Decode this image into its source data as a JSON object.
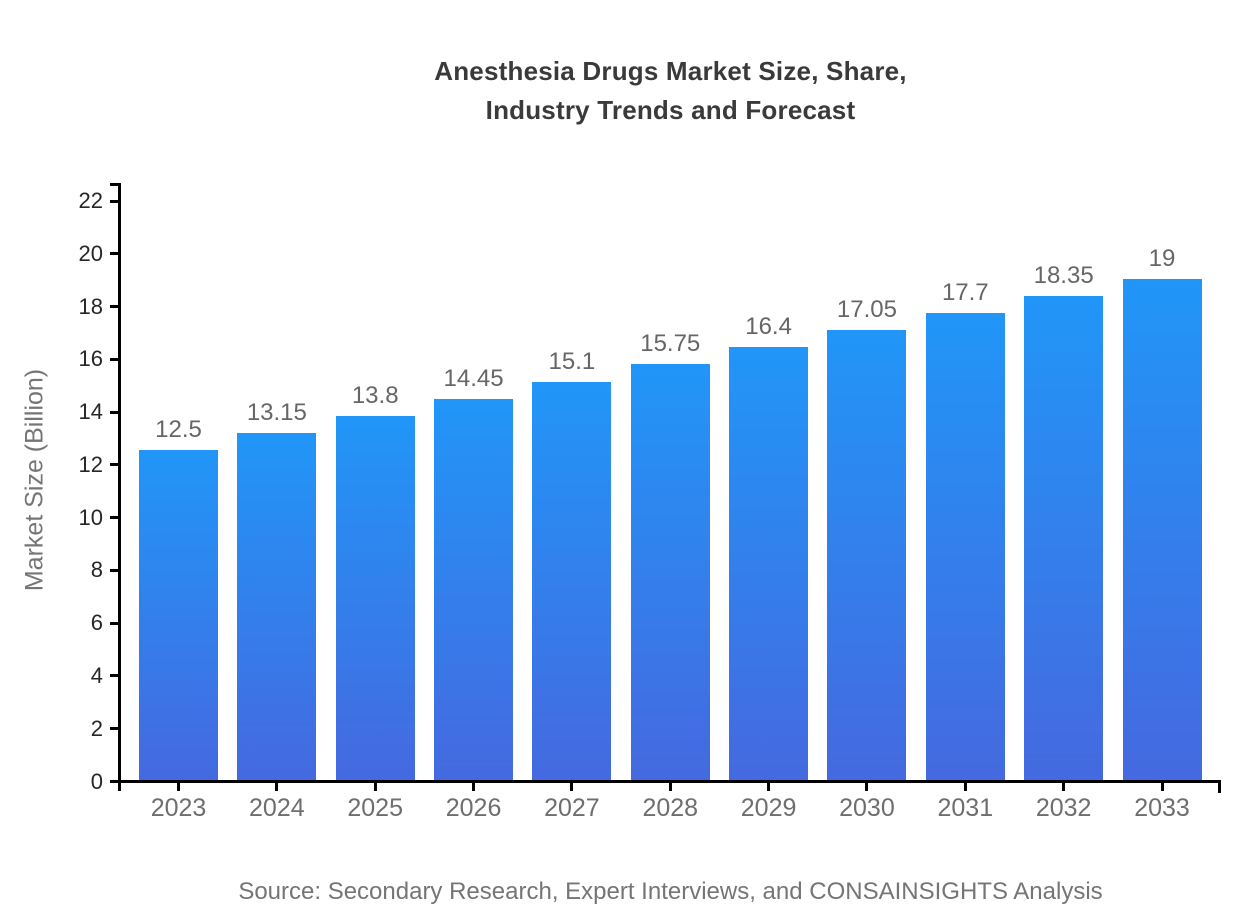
{
  "page": {
    "title_line1": "Anesthesia Drugs Market Size, Share,",
    "title_line2": "Industry Trends and Forecast",
    "source_note": "Source: Secondary Research, Expert Interviews, and CONSAINSIGHTS Analysis"
  },
  "chart_data": {
    "type": "bar",
    "title": "Anesthesia Drugs Market Size, Share, Industry Trends and Forecast",
    "categories": [
      "2023",
      "2024",
      "2025",
      "2026",
      "2027",
      "2028",
      "2029",
      "2030",
      "2031",
      "2032",
      "2033"
    ],
    "values": [
      12.5,
      13.15,
      13.8,
      14.45,
      15.1,
      15.75,
      16.4,
      17.05,
      17.7,
      18.35,
      19
    ],
    "value_labels": [
      "12.5",
      "13.15",
      "13.8",
      "14.45",
      "15.1",
      "15.75",
      "16.4",
      "17.05",
      "17.7",
      "18.35",
      "19"
    ],
    "xlabel": "",
    "ylabel": "Market Size (Billion)",
    "ylim": [
      0,
      22
    ],
    "yticks": [
      0,
      2,
      4,
      6,
      8,
      10,
      12,
      14,
      16,
      18,
      20,
      22
    ],
    "grid": false,
    "legend": false,
    "data_labels_shown": true,
    "colors": {
      "bar_top": "#2196F8",
      "bar_bottom": "#4569DF",
      "axis": "#000000",
      "y_tick_label": "#262626",
      "x_tick_label": "#6E6E6E",
      "data_label": "#666666",
      "title": "#3A3A3A",
      "muted_text": "#757575"
    }
  }
}
